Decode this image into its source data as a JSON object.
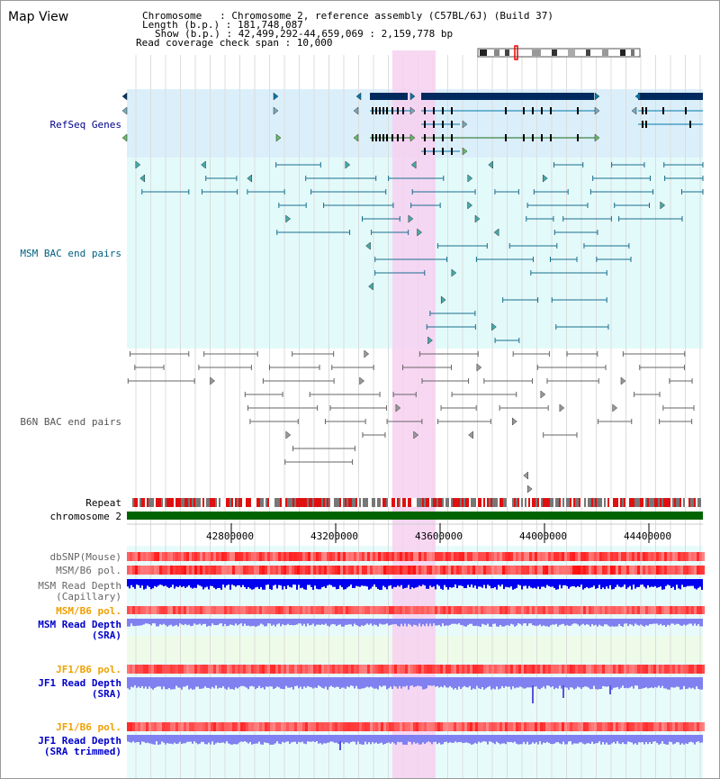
{
  "page": {
    "title": "Map View",
    "info": {
      "chromosome_line": "Chromosome   : Chromosome 2, reference assembly (C57BL/6J) (Build 37)",
      "length_line": "Length (b.p.) : 181,748,087",
      "show_line": "Show (b.p.) : 42,499,292-44,659,069 : 2,159,778 bp",
      "coverage_line": "Read coverage check span : 10,000"
    }
  },
  "tracks": {
    "refseq": {
      "label": "RefSeq Genes",
      "color": "#00008b"
    },
    "msm_bac": {
      "label": "MSM BAC end pairs",
      "color": "#006080"
    },
    "b6n_bac": {
      "label": "B6N BAC end pairs",
      "color": "#555555"
    },
    "repeat": {
      "label": "Repeat"
    },
    "chromosome": {
      "label": "chromosome 2"
    },
    "dbsnp": {
      "label": "dbSNP(Mouse)"
    },
    "msm_pol1": {
      "label": "MSM/B6 pol."
    },
    "msm_depth_cap": {
      "label1": "MSM Read Depth",
      "label2": "(Capillary)"
    },
    "msm_pol2": {
      "label": "MSM/B6 pol."
    },
    "msm_depth_sra": {
      "label1": "MSM Read Depth",
      "label2": "(SRA)"
    },
    "jf1_pol1": {
      "label": "JF1/B6 pol."
    },
    "jf1_depth_sra": {
      "label1": "JF1 Read Depth",
      "label2": "(SRA)"
    },
    "jf1_pol2": {
      "label": "JF1/B6 pol."
    },
    "jf1_depth_trim": {
      "label1": "JF1 Read Depth",
      "label2": "(SRA trimmed)"
    }
  },
  "axis": {
    "ticks": [
      "42800000",
      "43200000",
      "43600000",
      "44000000",
      "44400000"
    ]
  },
  "colors": {
    "highlight": "#f7d0f0",
    "refseq_bg": "#dbeffa",
    "msm_bg": "#e3fafa",
    "green_bar": "#006400",
    "depth_blue": "#0000ee",
    "depth_light": "#8080f0",
    "pol_red": "#ee2222"
  }
}
